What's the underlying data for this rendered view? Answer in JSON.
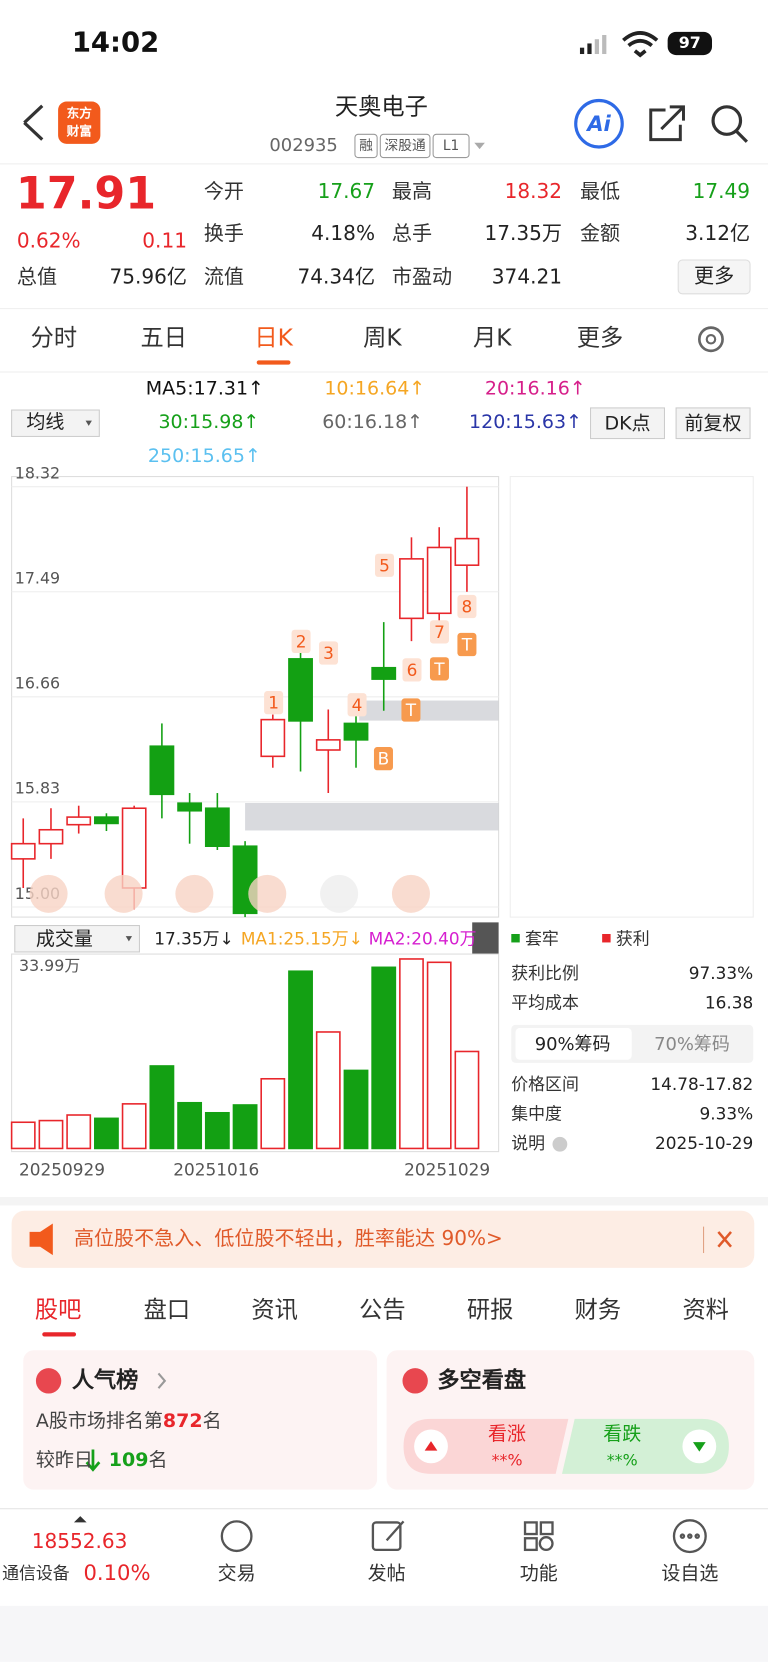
{
  "status_bar": {
    "time": "14:02",
    "battery": "97"
  },
  "header": {
    "logo": [
      "东方",
      "财富"
    ],
    "title": "天奥电子",
    "code": "002935",
    "tags": [
      "融",
      "深股通",
      "L1"
    ],
    "ai": "Ai"
  },
  "quote": {
    "price": "17.91",
    "change_pct": "0.62%",
    "change": "0.11",
    "up_color": "#e8262b",
    "down_color": "#16a01a",
    "rows": [
      [
        {
          "label": "今开",
          "value": "17.67",
          "color": "#16a01a"
        },
        {
          "label": "最高",
          "value": "18.32",
          "color": "#e8262b"
        },
        {
          "label": "最低",
          "value": "17.49",
          "color": "#16a01a"
        }
      ],
      [
        {
          "label": "换手",
          "value": "4.18%"
        },
        {
          "label": "总手",
          "value": "17.35万"
        },
        {
          "label": "金额",
          "value": "3.12亿"
        }
      ],
      [
        {
          "label": "总值",
          "value": "75.96亿"
        },
        {
          "label": "流值",
          "value": "74.34亿"
        },
        {
          "label": "市盈动",
          "value": "374.21"
        }
      ]
    ],
    "more": "更多"
  },
  "period_tabs": {
    "items": [
      "分时",
      "五日",
      "日K",
      "周K",
      "月K",
      "更多"
    ],
    "active": 2
  },
  "ma_legend": {
    "select": "均线",
    "dk": "DK点",
    "adjust": "前复权",
    "items": [
      {
        "label": "MA5:17.31↑",
        "color": "#111111"
      },
      {
        "label": "10:16.64↑",
        "color": "#f5a623"
      },
      {
        "label": "20:16.16↑",
        "color": "#d61f8a"
      },
      {
        "label": "30:15.98↑",
        "color": "#16a01a"
      },
      {
        "label": "60:16.18↑",
        "color": "#666666"
      },
      {
        "label": "120:15.63↑",
        "color": "#2a36a8"
      },
      {
        "label": "250:15.65↑",
        "color": "#5bc0f0"
      }
    ]
  },
  "kline": {
    "type": "candlestick",
    "ylim": [
      14.92,
      18.4
    ],
    "yticks": [
      18.32,
      17.49,
      16.66,
      15.83,
      {
        "value": 15,
        "label": "15.00"
      }
    ],
    "up_color": "#e8262b",
    "down_color": "#13a013",
    "candles": [
      {
        "open": 15.38,
        "high": 15.7,
        "low": 15.15,
        "close": 15.5
      },
      {
        "open": 15.5,
        "high": 15.78,
        "low": 15.38,
        "close": 15.61
      },
      {
        "open": 15.65,
        "high": 15.8,
        "low": 15.58,
        "close": 15.71
      },
      {
        "open": 15.71,
        "high": 15.74,
        "low": 15.6,
        "close": 15.66
      },
      {
        "open": 15.15,
        "high": 15.8,
        "low": 14.98,
        "close": 15.78
      },
      {
        "open": 16.27,
        "high": 16.45,
        "low": 15.7,
        "close": 15.89
      },
      {
        "open": 15.82,
        "high": 15.9,
        "low": 15.5,
        "close": 15.76
      },
      {
        "open": 15.78,
        "high": 15.9,
        "low": 15.45,
        "close": 15.48
      },
      {
        "open": 15.48,
        "high": 15.52,
        "low": 14.92,
        "close": 14.95
      },
      {
        "open": 16.19,
        "high": 16.52,
        "low": 16.1,
        "close": 16.48
      },
      {
        "open": 16.96,
        "high": 17.1,
        "low": 16.07,
        "close": 16.47
      },
      {
        "open": 16.24,
        "high": 16.56,
        "low": 15.9,
        "close": 16.32
      },
      {
        "open": 16.45,
        "high": 16.55,
        "low": 16.1,
        "close": 16.32
      },
      {
        "open": 16.89,
        "high": 17.25,
        "low": 16.55,
        "close": 16.8
      },
      {
        "open": 17.28,
        "high": 17.92,
        "low": 17.1,
        "close": 17.75
      },
      {
        "open": 17.32,
        "high": 18.0,
        "low": 17.2,
        "close": 17.84
      },
      {
        "open": 17.7,
        "high": 18.32,
        "low": 17.49,
        "close": 17.91
      }
    ],
    "signals": [
      "1",
      "2",
      "3",
      "4",
      "5",
      "6",
      "7",
      "8",
      "B",
      "T",
      "T",
      "T"
    ]
  },
  "volume": {
    "type": "bar",
    "select": "成交量",
    "current": "17.35万↓",
    "ma1": "MA1:25.15万↓",
    "ma2": "MA2:20.40万",
    "max_label": "33.99万",
    "ylim": [
      0,
      34.5
    ],
    "values": [
      4.7,
      5.0,
      6.0,
      5.4,
      8.0,
      14.8,
      8.2,
      6.4,
      7.8,
      12.5,
      31.8,
      20.9,
      14.0,
      32.5,
      34.0,
      33.4,
      17.4
    ],
    "dates": [
      "20250929",
      "20251016",
      "20251029"
    ]
  },
  "chips": {
    "legend": [
      {
        "label": "套牢",
        "color": "#16a01a"
      },
      {
        "label": "获利",
        "color": "#e8262b"
      }
    ],
    "rows1": [
      {
        "label": "获利比例",
        "value": "97.33%"
      },
      {
        "label": "平均成本",
        "value": "16.38"
      }
    ],
    "tabs": [
      "90%筹码",
      "70%筹码"
    ],
    "rows2": [
      {
        "label": "价格区间",
        "value": "14.78-17.82"
      },
      {
        "label": "集中度",
        "value": "9.33%"
      },
      {
        "label": "说明",
        "value": "2025-10-29"
      }
    ]
  },
  "banner": {
    "text": "高位股不急入、低位股不轻出，胜率能达 90%>"
  },
  "section_tabs": {
    "items": [
      "股吧",
      "盘口",
      "资讯",
      "公告",
      "研报",
      "财务",
      "资料"
    ],
    "active": 0
  },
  "popularity": {
    "title": "人气榜",
    "rank_prefix": "A股市场排名第",
    "rank": "872",
    "rank_suffix": "名",
    "change_prefix": "较昨日",
    "change": "109",
    "change_suffix": "名"
  },
  "sentiment": {
    "title": "多空看盘",
    "bull": "看涨",
    "bull_value": "**%",
    "bear": "看跌",
    "bear_value": "**%"
  },
  "footer": {
    "index_value": "18552.63",
    "sector": "通信设备",
    "sector_change": "0.10%",
    "items": [
      "交易",
      "发帖",
      "功能",
      "设自选"
    ]
  }
}
